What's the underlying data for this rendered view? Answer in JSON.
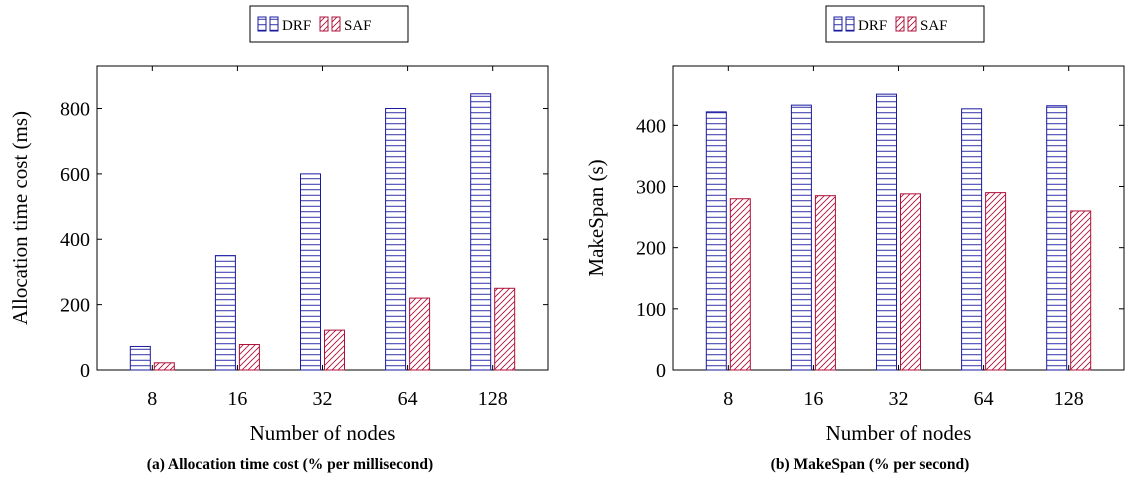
{
  "chart_data": [
    {
      "type": "bar",
      "categories": [
        "8",
        "16",
        "32",
        "64",
        "128"
      ],
      "series": [
        {
          "name": "DRF",
          "values": [
            72,
            350,
            600,
            800,
            845
          ]
        },
        {
          "name": "SAF",
          "values": [
            22,
            78,
            122,
            220,
            250
          ]
        }
      ],
      "xlabel": "Number of nodes",
      "ylabel": "Allocation time cost (ms)",
      "ylim": [
        0,
        930
      ],
      "yticks": [
        0,
        200,
        400,
        600,
        800
      ],
      "legend": "top-center",
      "grid": false,
      "caption": "(a) Allocation time cost (% per millisecond)"
    },
    {
      "type": "bar",
      "categories": [
        "8",
        "16",
        "32",
        "64",
        "128"
      ],
      "series": [
        {
          "name": "DRF",
          "values": [
            422,
            433,
            451,
            427,
            432
          ]
        },
        {
          "name": "SAF",
          "values": [
            280,
            285,
            288,
            290,
            260
          ]
        }
      ],
      "xlabel": "Number of nodes",
      "ylabel": "MakeSpan (s)",
      "ylim": [
        0,
        497
      ],
      "yticks": [
        0,
        100,
        200,
        300,
        400
      ],
      "legend": "top-center",
      "grid": false,
      "caption": "(b) MakeSpan (% per second)"
    }
  ],
  "colors": {
    "DRF": "#1a1aa0",
    "SAF": "#b0103a"
  }
}
